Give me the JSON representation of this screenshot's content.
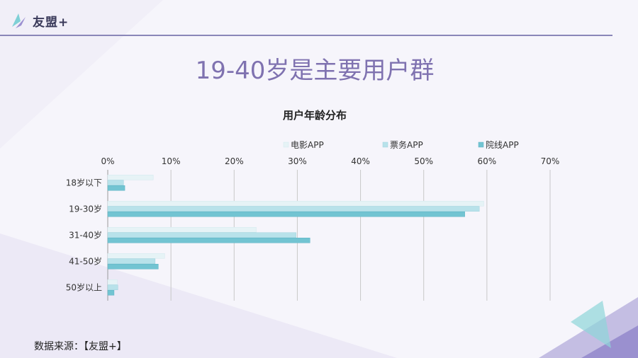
{
  "header": {
    "logo_text": "友盟+",
    "slide_title": "19-40岁是主要用户群"
  },
  "footer": {
    "source_text": "数据来源：【友盟+】"
  },
  "colors": {
    "accent": "#7f72b0",
    "series_1": "#e6f3f6",
    "series_2": "#b8e2ea",
    "series_3": "#72c4d2"
  },
  "chart_data": {
    "type": "bar",
    "orientation": "horizontal",
    "title": "用户年龄分布",
    "categories": [
      "18岁以下",
      "19-30岁",
      "31-40岁",
      "41-50岁",
      "50岁以上"
    ],
    "series": [
      {
        "name": "电影APP",
        "values": [
          7.2,
          59.5,
          23.5,
          9.0,
          1.5
        ]
      },
      {
        "name": "票务APP",
        "values": [
          2.5,
          58.8,
          29.8,
          7.5,
          1.6
        ]
      },
      {
        "name": "院线APP",
        "values": [
          2.7,
          56.5,
          32.0,
          8.0,
          1.0
        ]
      }
    ],
    "xlim": [
      0,
      70
    ],
    "xticks": [
      "0%",
      "10%",
      "20%",
      "30%",
      "40%",
      "50%",
      "60%",
      "70%"
    ],
    "grid": true,
    "legend": "top-right"
  }
}
